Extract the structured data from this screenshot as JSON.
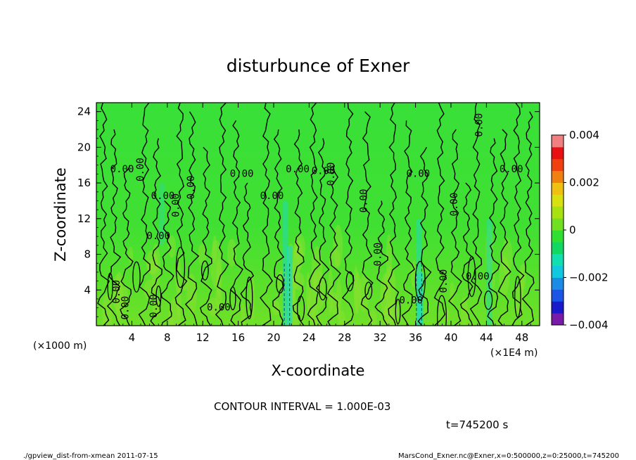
{
  "chart_data": {
    "type": "heatmap",
    "title": "disturbunce of Exner",
    "xlabel": "X-coordinate",
    "ylabel": "Z-coordinate",
    "x_unit": "(×1000 m)",
    "x_unit_right": "(×1E4 m)",
    "xlim": [
      0,
      50
    ],
    "ylim": [
      0,
      25
    ],
    "x_ticks": [
      4,
      8,
      12,
      16,
      20,
      24,
      28,
      32,
      36,
      40,
      44,
      48
    ],
    "y_ticks": [
      4,
      8,
      12,
      16,
      20,
      24
    ],
    "colorbar": {
      "range": [
        -0.004,
        0.004
      ],
      "ticks": [
        "0.004",
        "0.002",
        "0",
        "−0.002",
        "−0.004"
      ],
      "tick_values": [
        0.004,
        0.002,
        0,
        -0.002,
        -0.004
      ],
      "colors": [
        "#7a1aa8",
        "#1a1acc",
        "#1a55e6",
        "#1a8ce6",
        "#10c8e0",
        "#10e0b0",
        "#10d860",
        "#30e030",
        "#70e020",
        "#a8e010",
        "#d8e010",
        "#f0c010",
        "#f08010",
        "#f04010",
        "#e81010",
        "#f08080"
      ]
    },
    "contour_interval": "CONTOUR INTERVAL = 1.000E-03",
    "contour_label_value": "0.00",
    "time_label": "t=745200 s",
    "contour_labels": [
      {
        "x": 2.3,
        "z": 3.8,
        "rot": -90
      },
      {
        "x": 3.3,
        "z": 2.0,
        "rot": -90
      },
      {
        "x": 2.9,
        "z": 17.5,
        "rot": 0
      },
      {
        "x": 5.0,
        "z": 17.5,
        "rot": -90
      },
      {
        "x": 6.5,
        "z": 2.2,
        "rot": -90
      },
      {
        "x": 7.0,
        "z": 10.0,
        "rot": 0
      },
      {
        "x": 7.5,
        "z": 14.5,
        "rot": 0
      },
      {
        "x": 9.0,
        "z": 13.5,
        "rot": -90
      },
      {
        "x": 10.7,
        "z": 15.5,
        "rot": -90
      },
      {
        "x": 13.8,
        "z": 2.0,
        "rot": 0
      },
      {
        "x": 16.4,
        "z": 17.0,
        "rot": 0
      },
      {
        "x": 19.8,
        "z": 14.5,
        "rot": 0
      },
      {
        "x": 22.7,
        "z": 17.5,
        "rot": 0
      },
      {
        "x": 25.6,
        "z": 17.3,
        "rot": 0
      },
      {
        "x": 26.5,
        "z": 17.0,
        "rot": -90
      },
      {
        "x": 30.2,
        "z": 14.0,
        "rot": -90
      },
      {
        "x": 31.8,
        "z": 8.0,
        "rot": -90
      },
      {
        "x": 35.5,
        "z": 2.8,
        "rot": 0
      },
      {
        "x": 36.3,
        "z": 17.0,
        "rot": 0
      },
      {
        "x": 39.2,
        "z": 5.0,
        "rot": -90
      },
      {
        "x": 40.4,
        "z": 13.6,
        "rot": -90
      },
      {
        "x": 43.2,
        "z": 22.5,
        "rot": -90
      },
      {
        "x": 43.0,
        "z": 5.5,
        "rot": 0
      },
      {
        "x": 46.8,
        "z": 17.5,
        "rot": 0
      }
    ],
    "dashed_contours_x": [
      21.5,
      36.4
    ]
  },
  "footer": {
    "left": "./gpview_dist-from-xmean   2011-07-15",
    "right": "MarsCond_Exner.nc@Exner,x=0:500000,z=0:25000,t=745200"
  }
}
